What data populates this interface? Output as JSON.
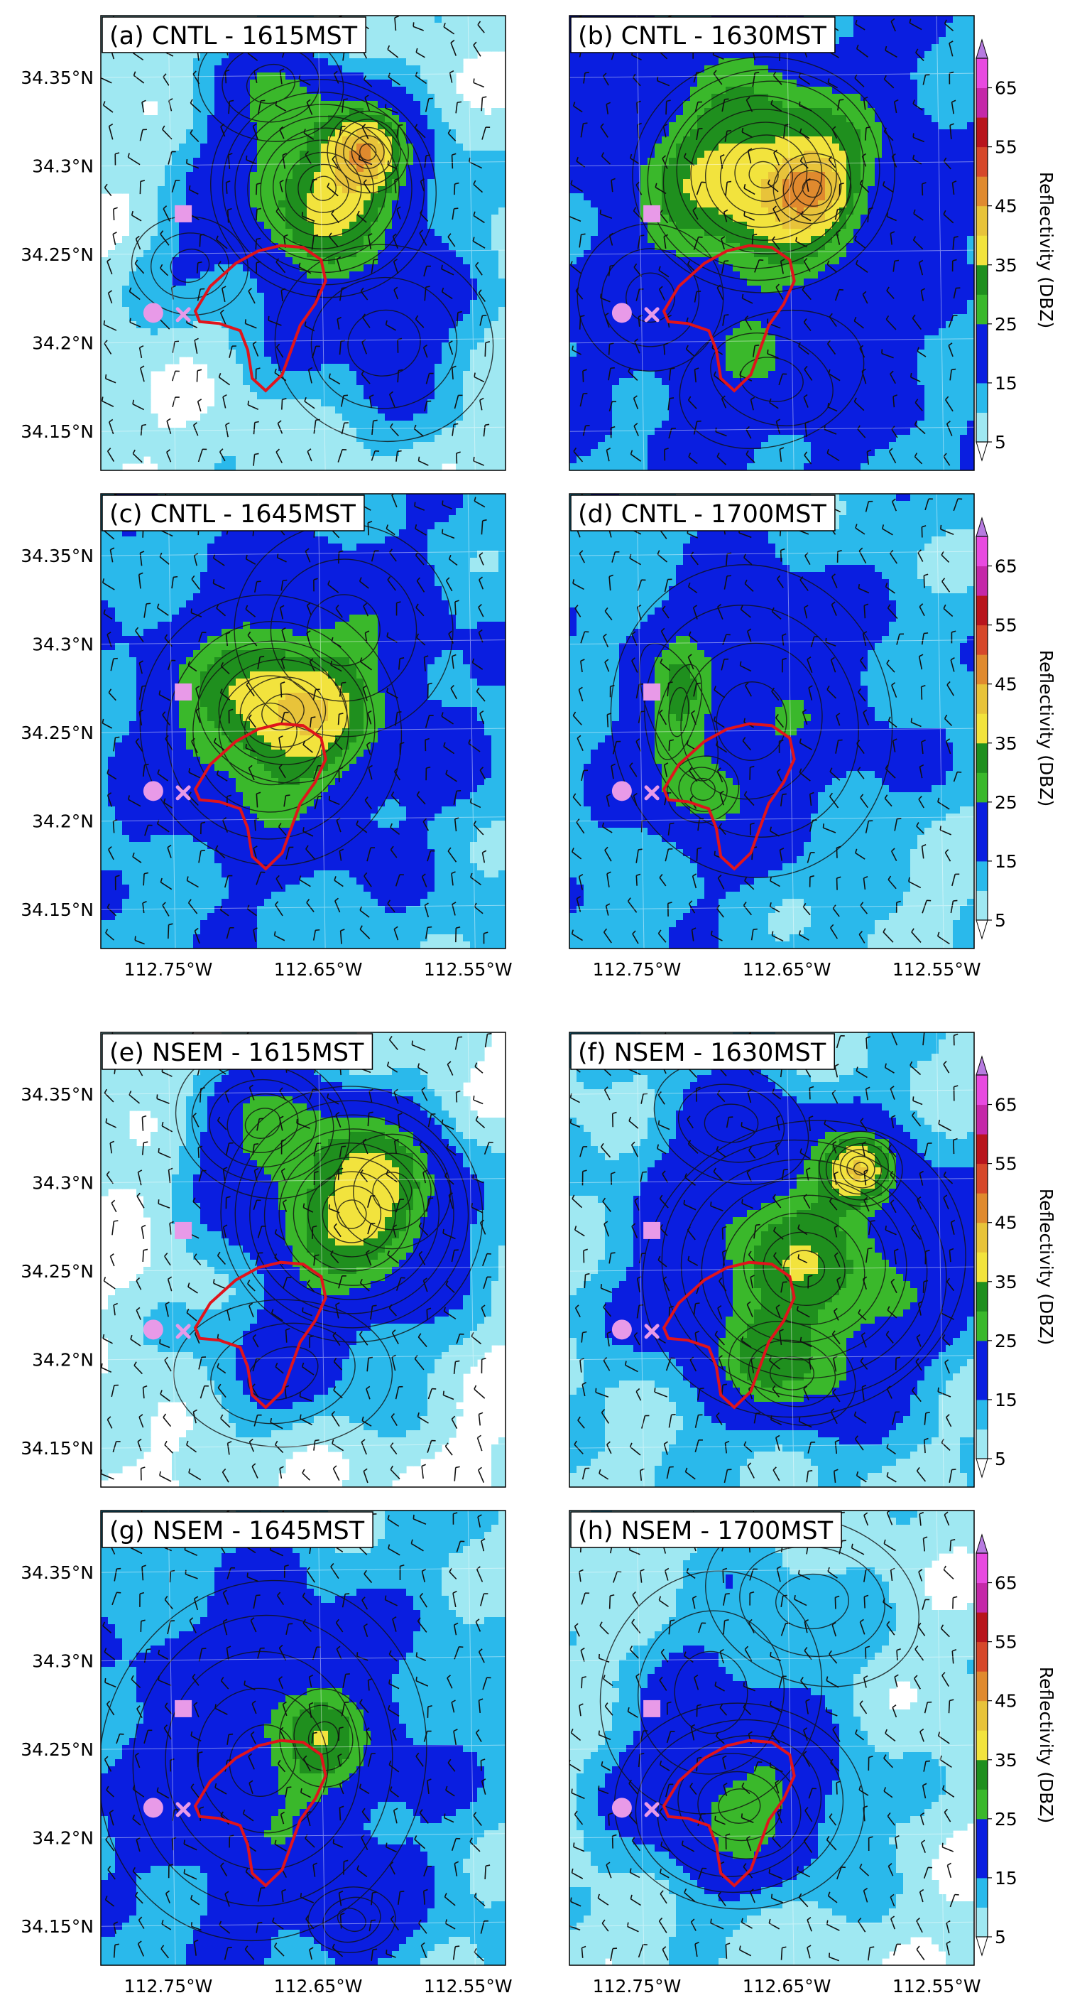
{
  "chart_data": {
    "type": "heatmap",
    "figure_layout": "4 rows x 2 columns of map panels, one colorbar per row",
    "field": "simulated radar reflectivity (shaded) with black contours and wind barbs",
    "x_axis": {
      "ticks": [
        -112.75,
        -112.65,
        -112.55
      ],
      "tick_labels": [
        "112.75°W",
        "112.65°W",
        "112.55°W"
      ],
      "range": [
        -112.795,
        -112.525
      ]
    },
    "y_axis": {
      "ticks": [
        34.15,
        34.2,
        34.25,
        34.3,
        34.35
      ],
      "tick_labels": [
        "34.15°N",
        "34.2°N",
        "34.25°N",
        "34.3°N",
        "34.35°N"
      ],
      "range": [
        34.128,
        34.385
      ]
    },
    "colorbar": {
      "label": "Reflectivity (DBZ)",
      "levels": [
        5,
        10,
        15,
        20,
        25,
        30,
        35,
        40,
        45,
        50,
        55,
        60,
        65
      ],
      "tick_labels": [
        "5",
        "15",
        "25",
        "35",
        "45",
        "55",
        "65"
      ],
      "colors": [
        "#9fe8f2",
        "#2ab9eb",
        "#0a1ee0",
        "#0a1ee0",
        "#3ab82b",
        "#1f8f1e",
        "#f2e33d",
        "#e8c33a",
        "#e08a2e",
        "#d6482a",
        "#b8141c",
        "#c428a8",
        "#e84ae0"
      ],
      "extend": "both"
    },
    "markers": [
      {
        "symbol": "circle",
        "lon": -112.76,
        "lat": 34.217,
        "color": "#e89ae8"
      },
      {
        "symbol": "square",
        "lon": -112.74,
        "lat": 34.273,
        "color": "#e89ae8"
      },
      {
        "symbol": "x",
        "lon": -112.74,
        "lat": 34.216,
        "color": "#e89ae8"
      }
    ],
    "outline_color": "#e0141c",
    "panels": [
      {
        "title": "(a) CNTL - 1615MST",
        "exp": "CNTL",
        "time": "1615MST"
      },
      {
        "title": "(b) CNTL - 1630MST",
        "exp": "CNTL",
        "time": "1630MST"
      },
      {
        "title": "(c) CNTL -  1645MST",
        "exp": "CNTL",
        "time": "1645MST"
      },
      {
        "title": "(d) CNTL - 1700MST",
        "exp": "CNTL",
        "time": "1700MST"
      },
      {
        "title": "(e) NSEM - 1615MST",
        "exp": "NSEM",
        "time": "1615MST"
      },
      {
        "title": "(f) NSEM - 1630MST",
        "exp": "NSEM",
        "time": "1630MST"
      },
      {
        "title": "(g) NSEM -  1645MST",
        "exp": "NSEM",
        "time": "1645MST"
      },
      {
        "title": "(h) NSEM - 1700MST",
        "exp": "NSEM",
        "time": "1700MST"
      }
    ]
  }
}
